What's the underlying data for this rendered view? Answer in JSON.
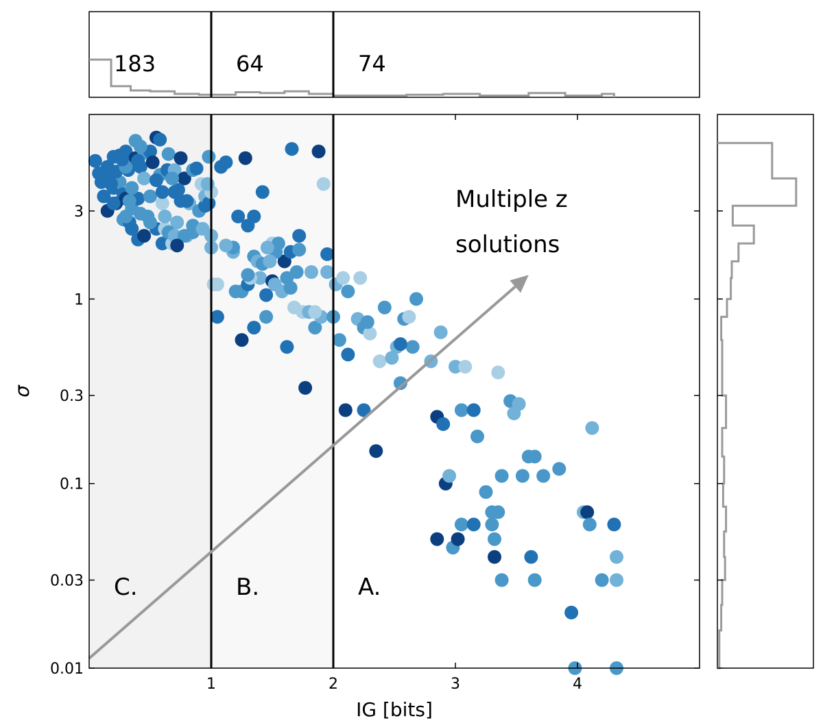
{
  "chart_data": {
    "type": "scatter",
    "xlabel": "IG [bits]",
    "ylabel": "σ",
    "xlim": [
      0,
      5
    ],
    "ylim": [
      0.01,
      10
    ],
    "yscale": "log",
    "xticks": [
      {
        "value": 1,
        "label": "1"
      },
      {
        "value": 2,
        "label": "2"
      },
      {
        "value": 3,
        "label": "3"
      },
      {
        "value": 4,
        "label": "4"
      }
    ],
    "yticks": [
      {
        "value": 0.01,
        "label": "0.01"
      },
      {
        "value": 0.03,
        "label": "0.03"
      },
      {
        "value": 0.1,
        "label": "0.1"
      },
      {
        "value": 0.3,
        "label": "0.3"
      },
      {
        "value": 1,
        "label": "1"
      },
      {
        "value": 3,
        "label": "3"
      }
    ],
    "thresholds": [
      1,
      2
    ],
    "regions": [
      {
        "label": "C.",
        "x_from": 0,
        "x_to": 1,
        "shade": "#f2f2f2",
        "count": "183"
      },
      {
        "label": "B.",
        "x_from": 1,
        "x_to": 2,
        "shade": "#f8f8f8",
        "count": "64"
      },
      {
        "label": "A.",
        "x_from": 2,
        "x_to": 5,
        "shade": "#ffffff",
        "count": "74"
      }
    ],
    "annotation": {
      "lines": [
        "Multiple z",
        "solutions"
      ],
      "arrow": {
        "from": [
          0,
          0.0113
        ],
        "to": [
          3.6,
          1.35
        ]
      }
    },
    "colors": {
      "c1": "#a9cfe5",
      "c2": "#72b1d8",
      "c3": "#4a98c9",
      "c4": "#2171b5",
      "c5": "#0b3f80",
      "arrow": "#999999",
      "hist": "#9a9a9a"
    },
    "points": [
      [
        0.05,
        5.6,
        4
      ],
      [
        0.08,
        4.8,
        4
      ],
      [
        0.1,
        4.3,
        4
      ],
      [
        0.12,
        3.6,
        4
      ],
      [
        0.15,
        5.2,
        4
      ],
      [
        0.15,
        3.0,
        5
      ],
      [
        0.18,
        4.6,
        3
      ],
      [
        0.2,
        4.0,
        4
      ],
      [
        0.2,
        5.9,
        4
      ],
      [
        0.22,
        3.3,
        5
      ],
      [
        0.25,
        6.0,
        4
      ],
      [
        0.25,
        4.3,
        3
      ],
      [
        0.28,
        2.7,
        3
      ],
      [
        0.28,
        3.7,
        4
      ],
      [
        0.3,
        6.3,
        4
      ],
      [
        0.3,
        3.5,
        5
      ],
      [
        0.32,
        5.0,
        4
      ],
      [
        0.33,
        2.6,
        4
      ],
      [
        0.35,
        3.1,
        3
      ],
      [
        0.35,
        2.4,
        4
      ],
      [
        0.38,
        7.2,
        3
      ],
      [
        0.38,
        5.8,
        5
      ],
      [
        0.4,
        2.1,
        4
      ],
      [
        0.4,
        3.5,
        4
      ],
      [
        0.42,
        5.2,
        4
      ],
      [
        0.45,
        6.2,
        3
      ],
      [
        0.45,
        4.5,
        2
      ],
      [
        0.48,
        2.8,
        3
      ],
      [
        0.5,
        6.3,
        4
      ],
      [
        0.5,
        3.6,
        3
      ],
      [
        0.52,
        5.5,
        5
      ],
      [
        0.55,
        2.4,
        4
      ],
      [
        0.55,
        7.5,
        5
      ],
      [
        0.58,
        7.3,
        4
      ],
      [
        0.58,
        4.7,
        3
      ],
      [
        0.6,
        3.3,
        1
      ],
      [
        0.6,
        2.0,
        4
      ],
      [
        0.62,
        2.4,
        1
      ],
      [
        0.64,
        5.0,
        4
      ],
      [
        0.65,
        6.1,
        3
      ],
      [
        0.68,
        2.0,
        1
      ],
      [
        0.7,
        3.8,
        4
      ],
      [
        0.7,
        5.0,
        2
      ],
      [
        0.72,
        2.6,
        2
      ],
      [
        0.75,
        5.8,
        5
      ],
      [
        0.75,
        3.4,
        4
      ],
      [
        0.78,
        4.5,
        5
      ],
      [
        0.8,
        2.2,
        2
      ],
      [
        0.82,
        3.3,
        2
      ],
      [
        0.85,
        2.3,
        3
      ],
      [
        0.85,
        5.0,
        3
      ],
      [
        0.9,
        3.0,
        3
      ],
      [
        0.92,
        4.2,
        1
      ],
      [
        0.95,
        3.2,
        4
      ],
      [
        0.98,
        5.9,
        3
      ],
      [
        1.0,
        2.2,
        2
      ],
      [
        0.18,
        4.2,
        4
      ],
      [
        0.22,
        4.9,
        4
      ],
      [
        0.3,
        5.2,
        3
      ],
      [
        0.35,
        4.0,
        3
      ],
      [
        0.42,
        2.9,
        3
      ],
      [
        0.45,
        2.2,
        5
      ],
      [
        0.5,
        2.6,
        3
      ],
      [
        0.55,
        4.4,
        4
      ],
      [
        0.6,
        3.8,
        4
      ],
      [
        0.65,
        2.3,
        3
      ],
      [
        0.7,
        2.2,
        2
      ],
      [
        0.73,
        3.9,
        4
      ],
      [
        0.78,
        2.2,
        3
      ],
      [
        0.8,
        3.4,
        4
      ],
      [
        0.85,
        2.5,
        3
      ],
      [
        0.88,
        5.1,
        4
      ],
      [
        0.95,
        3.6,
        2
      ],
      [
        0.98,
        3.3,
        4
      ],
      [
        1.0,
        3.8,
        1
      ],
      [
        0.27,
        5.7,
        4
      ],
      [
        0.62,
        2.8,
        2
      ],
      [
        0.72,
        1.95,
        5
      ],
      [
        0.12,
        4.5,
        4
      ],
      [
        0.4,
        5.6,
        4
      ],
      [
        0.97,
        4.2,
        2
      ],
      [
        0.2,
        3.3,
        4
      ],
      [
        0.33,
        3.4,
        3
      ],
      [
        0.42,
        6.7,
        3
      ],
      [
        0.68,
        4.5,
        3
      ],
      [
        0.93,
        2.4,
        2
      ],
      [
        0.3,
        2.8,
        3
      ],
      [
        0.15,
        4.9,
        4
      ],
      [
        1.0,
        1.9,
        2
      ],
      [
        1.02,
        1.2,
        1
      ],
      [
        1.05,
        0.8,
        4
      ],
      [
        1.08,
        5.2,
        4
      ],
      [
        1.12,
        5.5,
        4
      ],
      [
        1.18,
        1.8,
        2
      ],
      [
        1.2,
        1.1,
        3
      ],
      [
        1.22,
        2.8,
        4
      ],
      [
        1.25,
        1.1,
        3
      ],
      [
        1.25,
        0.6,
        5
      ],
      [
        1.28,
        5.8,
        5
      ],
      [
        1.3,
        1.2,
        4
      ],
      [
        1.3,
        2.5,
        4
      ],
      [
        1.35,
        1.7,
        3
      ],
      [
        1.35,
        0.7,
        4
      ],
      [
        1.38,
        1.6,
        2
      ],
      [
        1.4,
        1.3,
        2
      ],
      [
        1.42,
        1.55,
        3
      ],
      [
        1.45,
        1.05,
        4
      ],
      [
        1.45,
        0.8,
        3
      ],
      [
        1.5,
        2.0,
        1
      ],
      [
        1.5,
        1.25,
        5
      ],
      [
        1.52,
        1.2,
        2
      ],
      [
        1.55,
        2.0,
        3
      ],
      [
        1.58,
        1.1,
        2
      ],
      [
        1.6,
        1.6,
        5
      ],
      [
        1.62,
        1.3,
        3
      ],
      [
        1.65,
        1.15,
        3
      ],
      [
        1.68,
        0.9,
        1
      ],
      [
        1.7,
        1.4,
        3
      ],
      [
        1.72,
        2.2,
        4
      ],
      [
        1.75,
        0.85,
        1
      ],
      [
        1.8,
        0.85,
        2
      ],
      [
        1.82,
        1.4,
        2
      ],
      [
        1.85,
        0.7,
        3
      ],
      [
        1.88,
        6.3,
        5
      ],
      [
        1.9,
        0.8,
        2
      ],
      [
        1.92,
        4.2,
        1
      ],
      [
        1.95,
        1.4,
        2
      ],
      [
        1.95,
        1.75,
        4
      ],
      [
        1.35,
        2.8,
        4
      ],
      [
        1.42,
        3.8,
        4
      ],
      [
        1.18,
        1.9,
        3
      ],
      [
        1.65,
        1.8,
        4
      ],
      [
        1.12,
        1.95,
        2
      ],
      [
        1.53,
        1.8,
        3
      ],
      [
        1.48,
        1.6,
        2
      ],
      [
        1.05,
        1.2,
        1
      ],
      [
        1.62,
        0.55,
        4
      ],
      [
        1.77,
        0.33,
        5
      ],
      [
        1.32,
        1.3,
        1
      ],
      [
        1.85,
        0.85,
        1
      ],
      [
        1.46,
        1.9,
        2
      ],
      [
        1.3,
        1.35,
        3
      ],
      [
        1.66,
        6.5,
        4
      ],
      [
        1.72,
        1.85,
        3
      ],
      [
        2.0,
        0.8,
        3
      ],
      [
        2.05,
        0.6,
        3
      ],
      [
        2.1,
        0.25,
        5
      ],
      [
        2.12,
        0.5,
        4
      ],
      [
        2.12,
        1.1,
        3
      ],
      [
        2.2,
        0.78,
        2
      ],
      [
        2.25,
        0.7,
        3
      ],
      [
        2.25,
        0.25,
        4
      ],
      [
        2.3,
        0.65,
        1
      ],
      [
        2.35,
        0.15,
        5
      ],
      [
        2.38,
        0.46,
        1
      ],
      [
        2.42,
        0.9,
        3
      ],
      [
        2.48,
        0.48,
        2
      ],
      [
        2.52,
        0.55,
        2
      ],
      [
        2.55,
        0.35,
        3
      ],
      [
        2.58,
        0.78,
        3
      ],
      [
        2.62,
        0.8,
        1
      ],
      [
        2.65,
        0.55,
        3
      ],
      [
        2.68,
        1.0,
        3
      ],
      [
        2.8,
        0.46,
        2
      ],
      [
        2.88,
        0.66,
        2
      ],
      [
        2.02,
        1.2,
        2
      ],
      [
        2.08,
        1.3,
        1
      ],
      [
        2.22,
        1.3,
        1
      ],
      [
        2.55,
        0.57,
        4
      ],
      [
        2.28,
        0.75,
        3
      ],
      [
        2.85,
        0.23,
        5
      ],
      [
        2.9,
        0.21,
        4
      ],
      [
        2.92,
        0.1,
        5
      ],
      [
        2.95,
        0.11,
        2
      ],
      [
        2.98,
        0.045,
        3
      ],
      [
        3.0,
        0.43,
        2
      ],
      [
        3.02,
        0.05,
        5
      ],
      [
        3.05,
        0.06,
        3
      ],
      [
        3.05,
        0.25,
        3
      ],
      [
        3.08,
        0.43,
        1
      ],
      [
        3.15,
        0.25,
        4
      ],
      [
        3.15,
        0.06,
        4
      ],
      [
        3.18,
        0.18,
        3
      ],
      [
        3.25,
        0.09,
        3
      ],
      [
        3.3,
        0.07,
        3
      ],
      [
        3.3,
        0.06,
        3
      ],
      [
        3.32,
        0.05,
        3
      ],
      [
        3.32,
        0.04,
        5
      ],
      [
        3.35,
        0.07,
        3
      ],
      [
        3.35,
        0.4,
        1
      ],
      [
        3.38,
        0.11,
        3
      ],
      [
        3.38,
        0.03,
        3
      ],
      [
        3.45,
        0.28,
        3
      ],
      [
        3.48,
        0.24,
        2
      ],
      [
        3.52,
        0.27,
        2
      ],
      [
        3.6,
        0.14,
        3
      ],
      [
        3.65,
        0.14,
        3
      ],
      [
        3.62,
        0.04,
        4
      ],
      [
        3.65,
        0.03,
        3
      ],
      [
        3.72,
        0.11,
        3
      ],
      [
        3.85,
        0.12,
        3
      ],
      [
        3.95,
        0.02,
        4
      ],
      [
        3.98,
        0.01,
        3
      ],
      [
        4.05,
        0.07,
        2
      ],
      [
        4.08,
        0.07,
        5
      ],
      [
        4.1,
        0.06,
        3
      ],
      [
        4.12,
        0.2,
        2
      ],
      [
        4.2,
        0.03,
        3
      ],
      [
        4.3,
        0.06,
        4
      ],
      [
        4.32,
        0.04,
        2
      ],
      [
        4.32,
        0.03,
        2
      ],
      [
        4.32,
        0.01,
        3
      ],
      [
        2.85,
        0.05,
        5
      ],
      [
        3.55,
        0.11,
        3
      ]
    ],
    "top_hist": {
      "edges": [
        0,
        0.18,
        0.34,
        0.5,
        0.7,
        0.9,
        1.0,
        1.2,
        1.4,
        1.6,
        1.8,
        2.0,
        2.3,
        2.6,
        2.9,
        3.2,
        3.6,
        3.9,
        4.2,
        4.3
      ],
      "heights": [
        0.44,
        0.13,
        0.08,
        0.07,
        0.04,
        0.03,
        0.03,
        0.06,
        0.05,
        0.07,
        0.04,
        0.02,
        0.02,
        0.03,
        0.04,
        0.02,
        0.05,
        0.02,
        0.04
      ]
    },
    "right_hist": {
      "edges": [
        0.01,
        0.012,
        0.016,
        0.022,
        0.03,
        0.04,
        0.055,
        0.075,
        0.1,
        0.14,
        0.2,
        0.3,
        0.45,
        0.6,
        0.8,
        1.0,
        1.3,
        1.6,
        2.0,
        2.5,
        3.2,
        4.5,
        7.0
      ],
      "counts": [
        0.02,
        0.02,
        0.04,
        0.05,
        0.08,
        0.07,
        0.09,
        0.06,
        0.07,
        0.05,
        0.09,
        0.05,
        0.05,
        0.04,
        0.1,
        0.14,
        0.15,
        0.22,
        0.38,
        0.16,
        0.82,
        0.57
      ]
    }
  }
}
